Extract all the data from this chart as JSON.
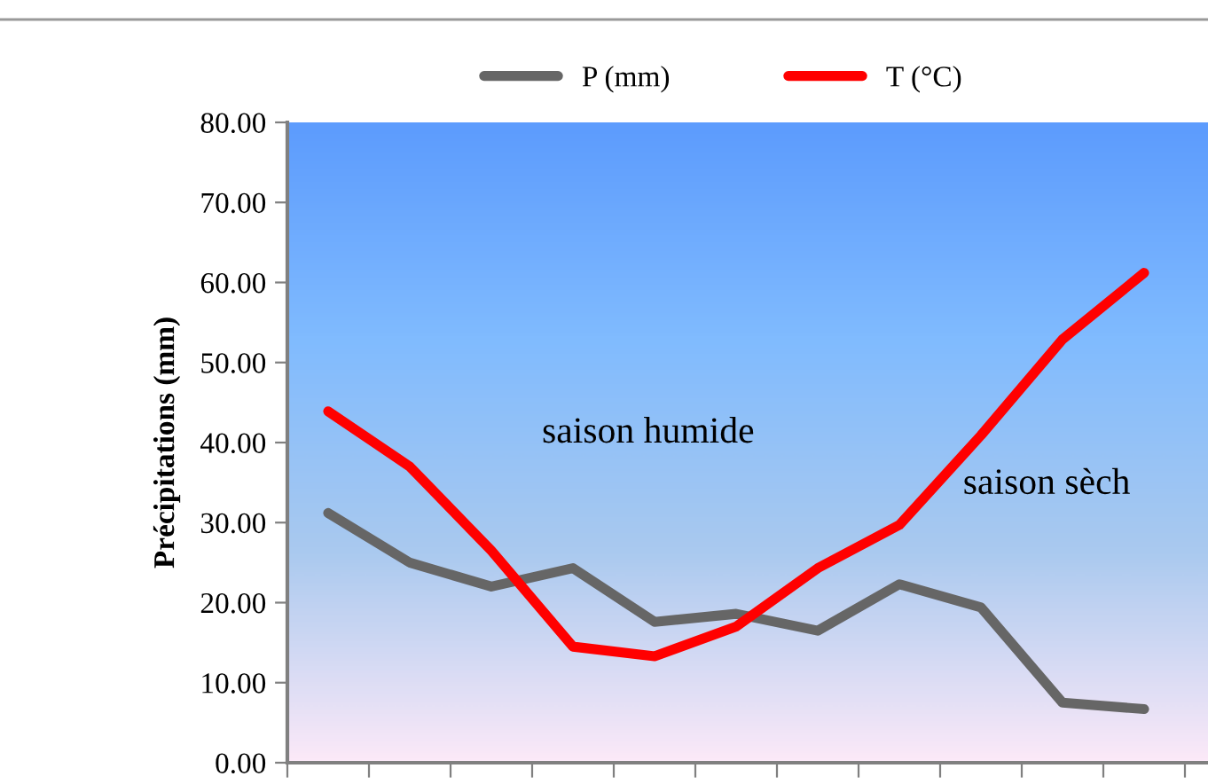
{
  "chart_data": {
    "type": "line",
    "categories": [
      null,
      null,
      null,
      null,
      null,
      null,
      null,
      null,
      null,
      null,
      null
    ],
    "series": [
      {
        "name": "P (mm)",
        "color": "#666666",
        "values": [
          31.2,
          25.0,
          22.0,
          24.3,
          17.6,
          18.6,
          16.5,
          22.3,
          19.4,
          7.5,
          6.7
        ]
      },
      {
        "name": "T (°C)",
        "color": "#ff0000",
        "values": [
          43.9,
          37.0,
          26.5,
          14.5,
          13.3,
          17.0,
          24.3,
          29.7,
          40.9,
          52.9,
          61.2
        ]
      }
    ],
    "ylabel": "Précipitations (mm)",
    "ylim": [
      0,
      80
    ],
    "yticks": [
      {
        "value": 0,
        "label": "0.00"
      },
      {
        "value": 10,
        "label": "10.00"
      },
      {
        "value": 20,
        "label": "20.00"
      },
      {
        "value": 30,
        "label": "30.00"
      },
      {
        "value": 40,
        "label": "40.00"
      },
      {
        "value": 50,
        "label": "50.00"
      },
      {
        "value": 60,
        "label": "60.00"
      },
      {
        "value": 70,
        "label": "70.00"
      },
      {
        "value": 80,
        "label": "80.00"
      }
    ],
    "annotations": [
      "saison humide",
      "saison sèch"
    ],
    "legend": "top",
    "grid": false,
    "marker": "none",
    "line_style": "solid",
    "tick_labels": "y"
  }
}
